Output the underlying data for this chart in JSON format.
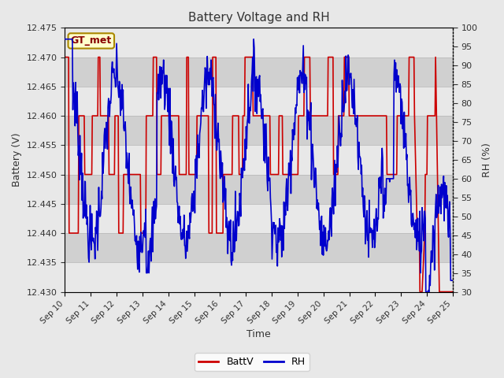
{
  "title": "Battery Voltage and RH",
  "xlabel": "Time",
  "ylabel_left": "Battery (V)",
  "ylabel_right": "RH (%)",
  "annotation": "GT_met",
  "left_ylim": [
    12.43,
    12.475
  ],
  "right_ylim": [
    30,
    100
  ],
  "left_yticks": [
    12.43,
    12.435,
    12.44,
    12.445,
    12.45,
    12.455,
    12.46,
    12.465,
    12.47,
    12.475
  ],
  "right_yticks": [
    30,
    35,
    40,
    45,
    50,
    55,
    60,
    65,
    70,
    75,
    80,
    85,
    90,
    95,
    100
  ],
  "xtick_labels": [
    "Sep 10",
    "Sep 11",
    "Sep 12",
    "Sep 13",
    "Sep 14",
    "Sep 15",
    "Sep 16",
    "Sep 17",
    "Sep 18",
    "Sep 19",
    "Sep 20",
    "Sep 21",
    "Sep 22",
    "Sep 23",
    "Sep 24",
    "Sep 25"
  ],
  "legend_labels": [
    "BattV",
    "RH"
  ],
  "battv_color": "#CC0000",
  "rh_color": "#0000CC",
  "grid_color": "#bbbbbb",
  "bg_color": "#e8e8e8",
  "inner_bg_color": "#d8d8d8",
  "band_color_light": "#e8e8e8",
  "band_color_dark": "#d0d0d0",
  "annotation_bg": "#ffffcc",
  "annotation_border": "#aa8800",
  "annotation_text_color": "#880000",
  "title_color": "#333333",
  "axis_label_color": "#333333",
  "tick_label_color": "#333333",
  "font_size": 9,
  "title_font_size": 11,
  "battv_linewidth": 1.2,
  "rh_linewidth": 1.2
}
